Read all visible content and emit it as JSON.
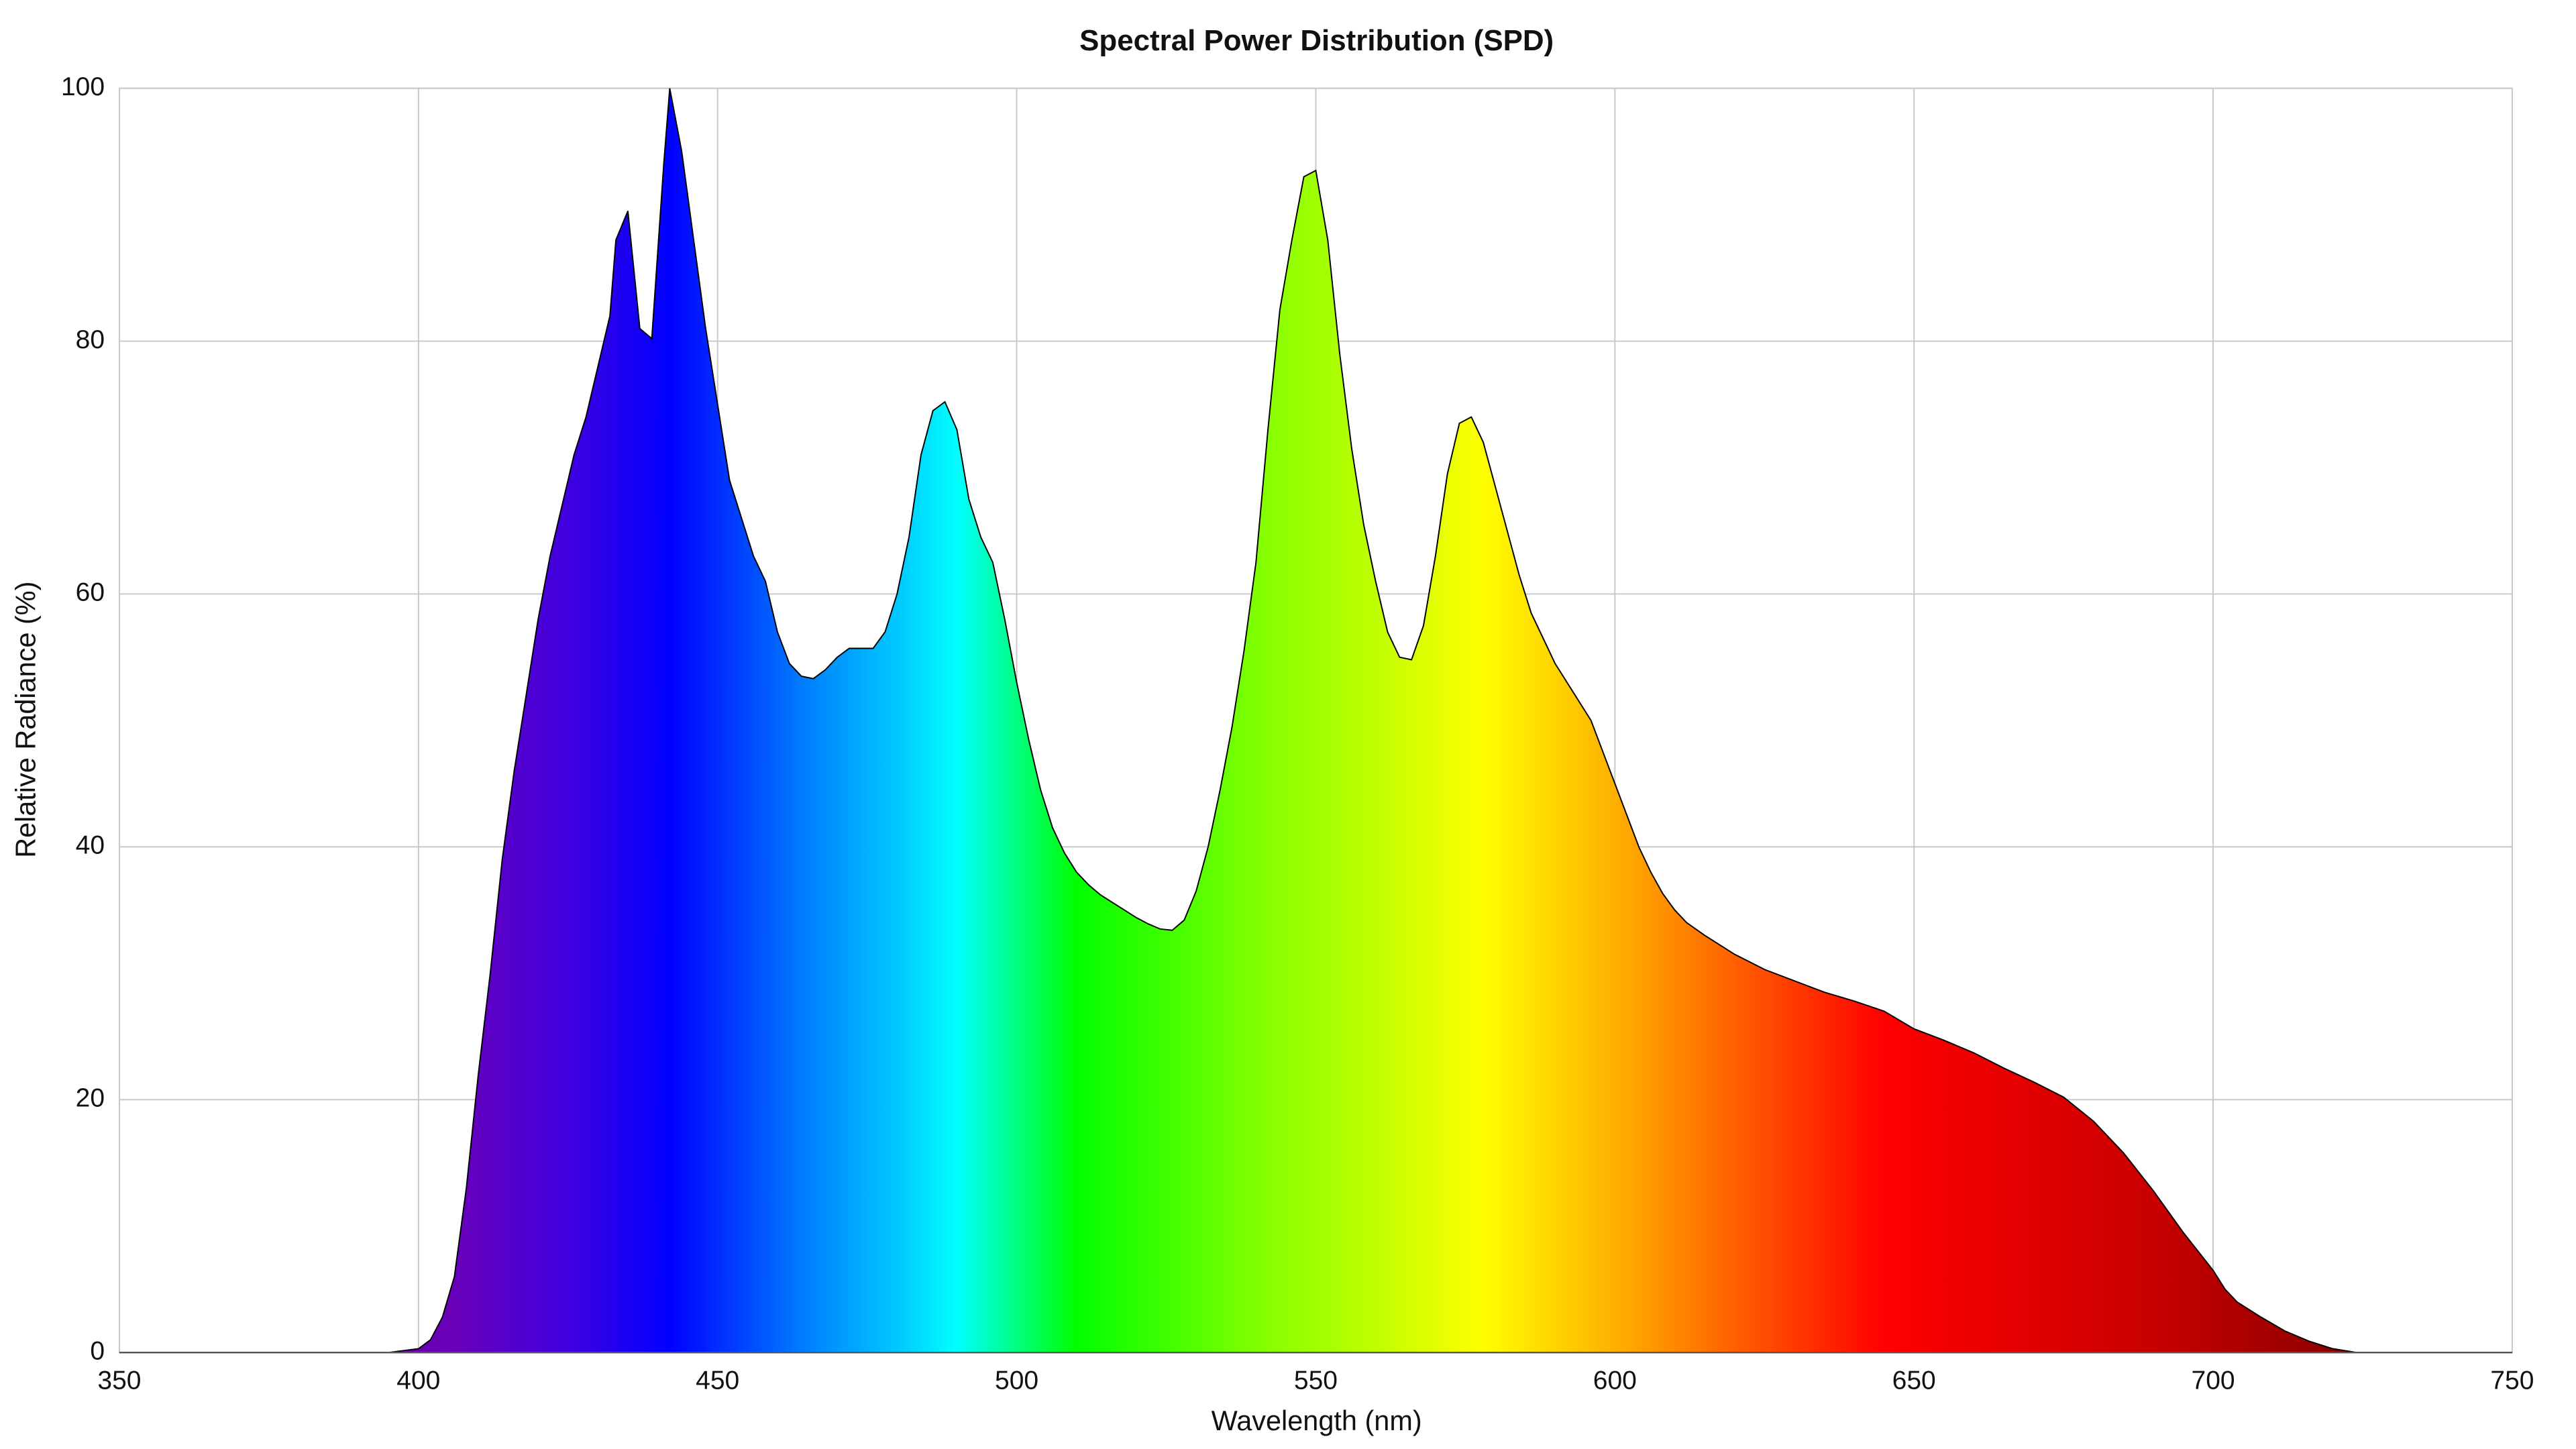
{
  "chart_data": {
    "type": "area",
    "title": "Spectral Power Distribution (SPD)",
    "x_label": "Wavelength (nm)",
    "y_label": "Relative Radiance (%)",
    "x": [
      350,
      395,
      400,
      402,
      404,
      406,
      408,
      410,
      412,
      414,
      416,
      418,
      420,
      422,
      424,
      426,
      428,
      430,
      432,
      433,
      435,
      437,
      439,
      441,
      442,
      444,
      446,
      448,
      450,
      452,
      454,
      456,
      458,
      460,
      462,
      464,
      466,
      468,
      470,
      472,
      474,
      476,
      478,
      480,
      482,
      484,
      486,
      488,
      490,
      492,
      494,
      496,
      498,
      500,
      502,
      504,
      506,
      508,
      510,
      512,
      514,
      516,
      518,
      520,
      522,
      524,
      526,
      528,
      530,
      532,
      534,
      536,
      538,
      540,
      542,
      544,
      546,
      548,
      550,
      552,
      554,
      556,
      558,
      560,
      562,
      564,
      566,
      568,
      570,
      572,
      574,
      576,
      578,
      580,
      582,
      584,
      586,
      588,
      590,
      592,
      594,
      596,
      598,
      600,
      602,
      604,
      606,
      608,
      610,
      612,
      615,
      620,
      625,
      630,
      635,
      640,
      645,
      650,
      655,
      660,
      665,
      670,
      675,
      680,
      685,
      690,
      695,
      700,
      702,
      704,
      708,
      712,
      716,
      720,
      724,
      750
    ],
    "values": [
      0,
      0,
      0.3,
      1,
      2.8,
      6,
      13,
      22,
      30,
      39,
      46,
      52,
      58,
      63,
      67,
      71,
      74,
      78,
      82,
      88,
      90.3,
      81,
      80.2,
      94,
      100,
      95,
      88,
      81,
      75,
      69,
      66,
      63,
      61,
      57,
      54.5,
      53.5,
      53.3,
      54,
      55,
      55.7,
      55.7,
      55.7,
      57,
      60,
      64.5,
      71,
      74.5,
      75.2,
      73,
      67.5,
      64.5,
      62.5,
      58,
      53,
      48.5,
      44.5,
      41.5,
      39.5,
      38,
      37,
      36.2,
      35.6,
      35,
      34.4,
      33.9,
      33.5,
      33.4,
      34.2,
      36.5,
      40,
      44.5,
      49.5,
      55.5,
      62.5,
      73,
      82.5,
      88,
      93,
      93.5,
      88,
      79,
      71.5,
      65.5,
      61,
      57,
      55,
      54.8,
      57.5,
      63,
      69.5,
      73.5,
      74,
      72,
      68.5,
      65,
      61.5,
      58.5,
      56.5,
      54.5,
      53,
      51.5,
      50,
      47.5,
      45,
      42.5,
      40,
      38,
      36.3,
      35,
      34,
      33,
      31.5,
      30.3,
      29.4,
      28.5,
      27.8,
      27,
      25.6,
      24.7,
      23.7,
      22.5,
      21.4,
      20.2,
      18.3,
      15.8,
      12.8,
      9.5,
      6.5,
      5,
      4,
      2.8,
      1.7,
      0.9,
      0.3,
      0,
      0
    ],
    "xlim": [
      350,
      750
    ],
    "ylim": [
      0,
      100
    ],
    "xticks": [
      350,
      400,
      450,
      500,
      550,
      600,
      650,
      700,
      750
    ],
    "yticks": [
      0,
      20,
      40,
      60,
      80,
      100
    ],
    "grid": true,
    "line_color": "#000000"
  }
}
